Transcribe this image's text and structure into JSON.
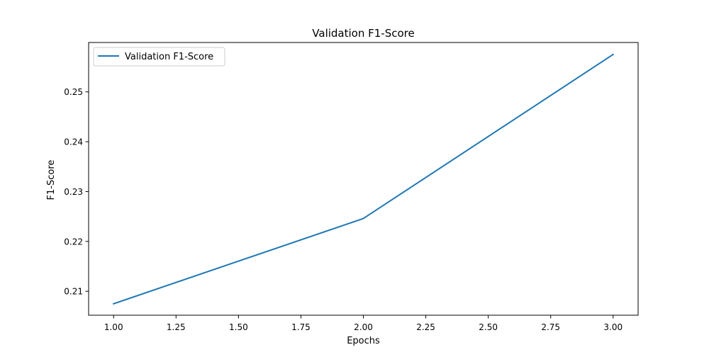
{
  "chart_data": {
    "type": "line",
    "title": "Validation F1-Score",
    "xlabel": "Epochs",
    "ylabel": "F1-Score",
    "x": [
      1,
      2,
      3
    ],
    "series": [
      {
        "name": "Validation F1-Score",
        "color": "#1f77b4",
        "values": [
          0.2075,
          0.2246,
          0.2575
        ]
      }
    ],
    "xlim": [
      0.9,
      3.1
    ],
    "ylim": [
      0.2052,
      0.2599
    ],
    "xticks": [
      1.0,
      1.25,
      1.5,
      1.75,
      2.0,
      2.25,
      2.5,
      2.75,
      3.0
    ],
    "xtick_labels": [
      "1.00",
      "1.25",
      "1.50",
      "1.75",
      "2.00",
      "2.25",
      "2.50",
      "2.75",
      "3.00"
    ],
    "yticks": [
      0.21,
      0.22,
      0.23,
      0.24,
      0.25
    ],
    "ytick_labels": [
      "0.21",
      "0.22",
      "0.23",
      "0.24",
      "0.25"
    ],
    "grid": false,
    "legend_position": "top-left"
  }
}
